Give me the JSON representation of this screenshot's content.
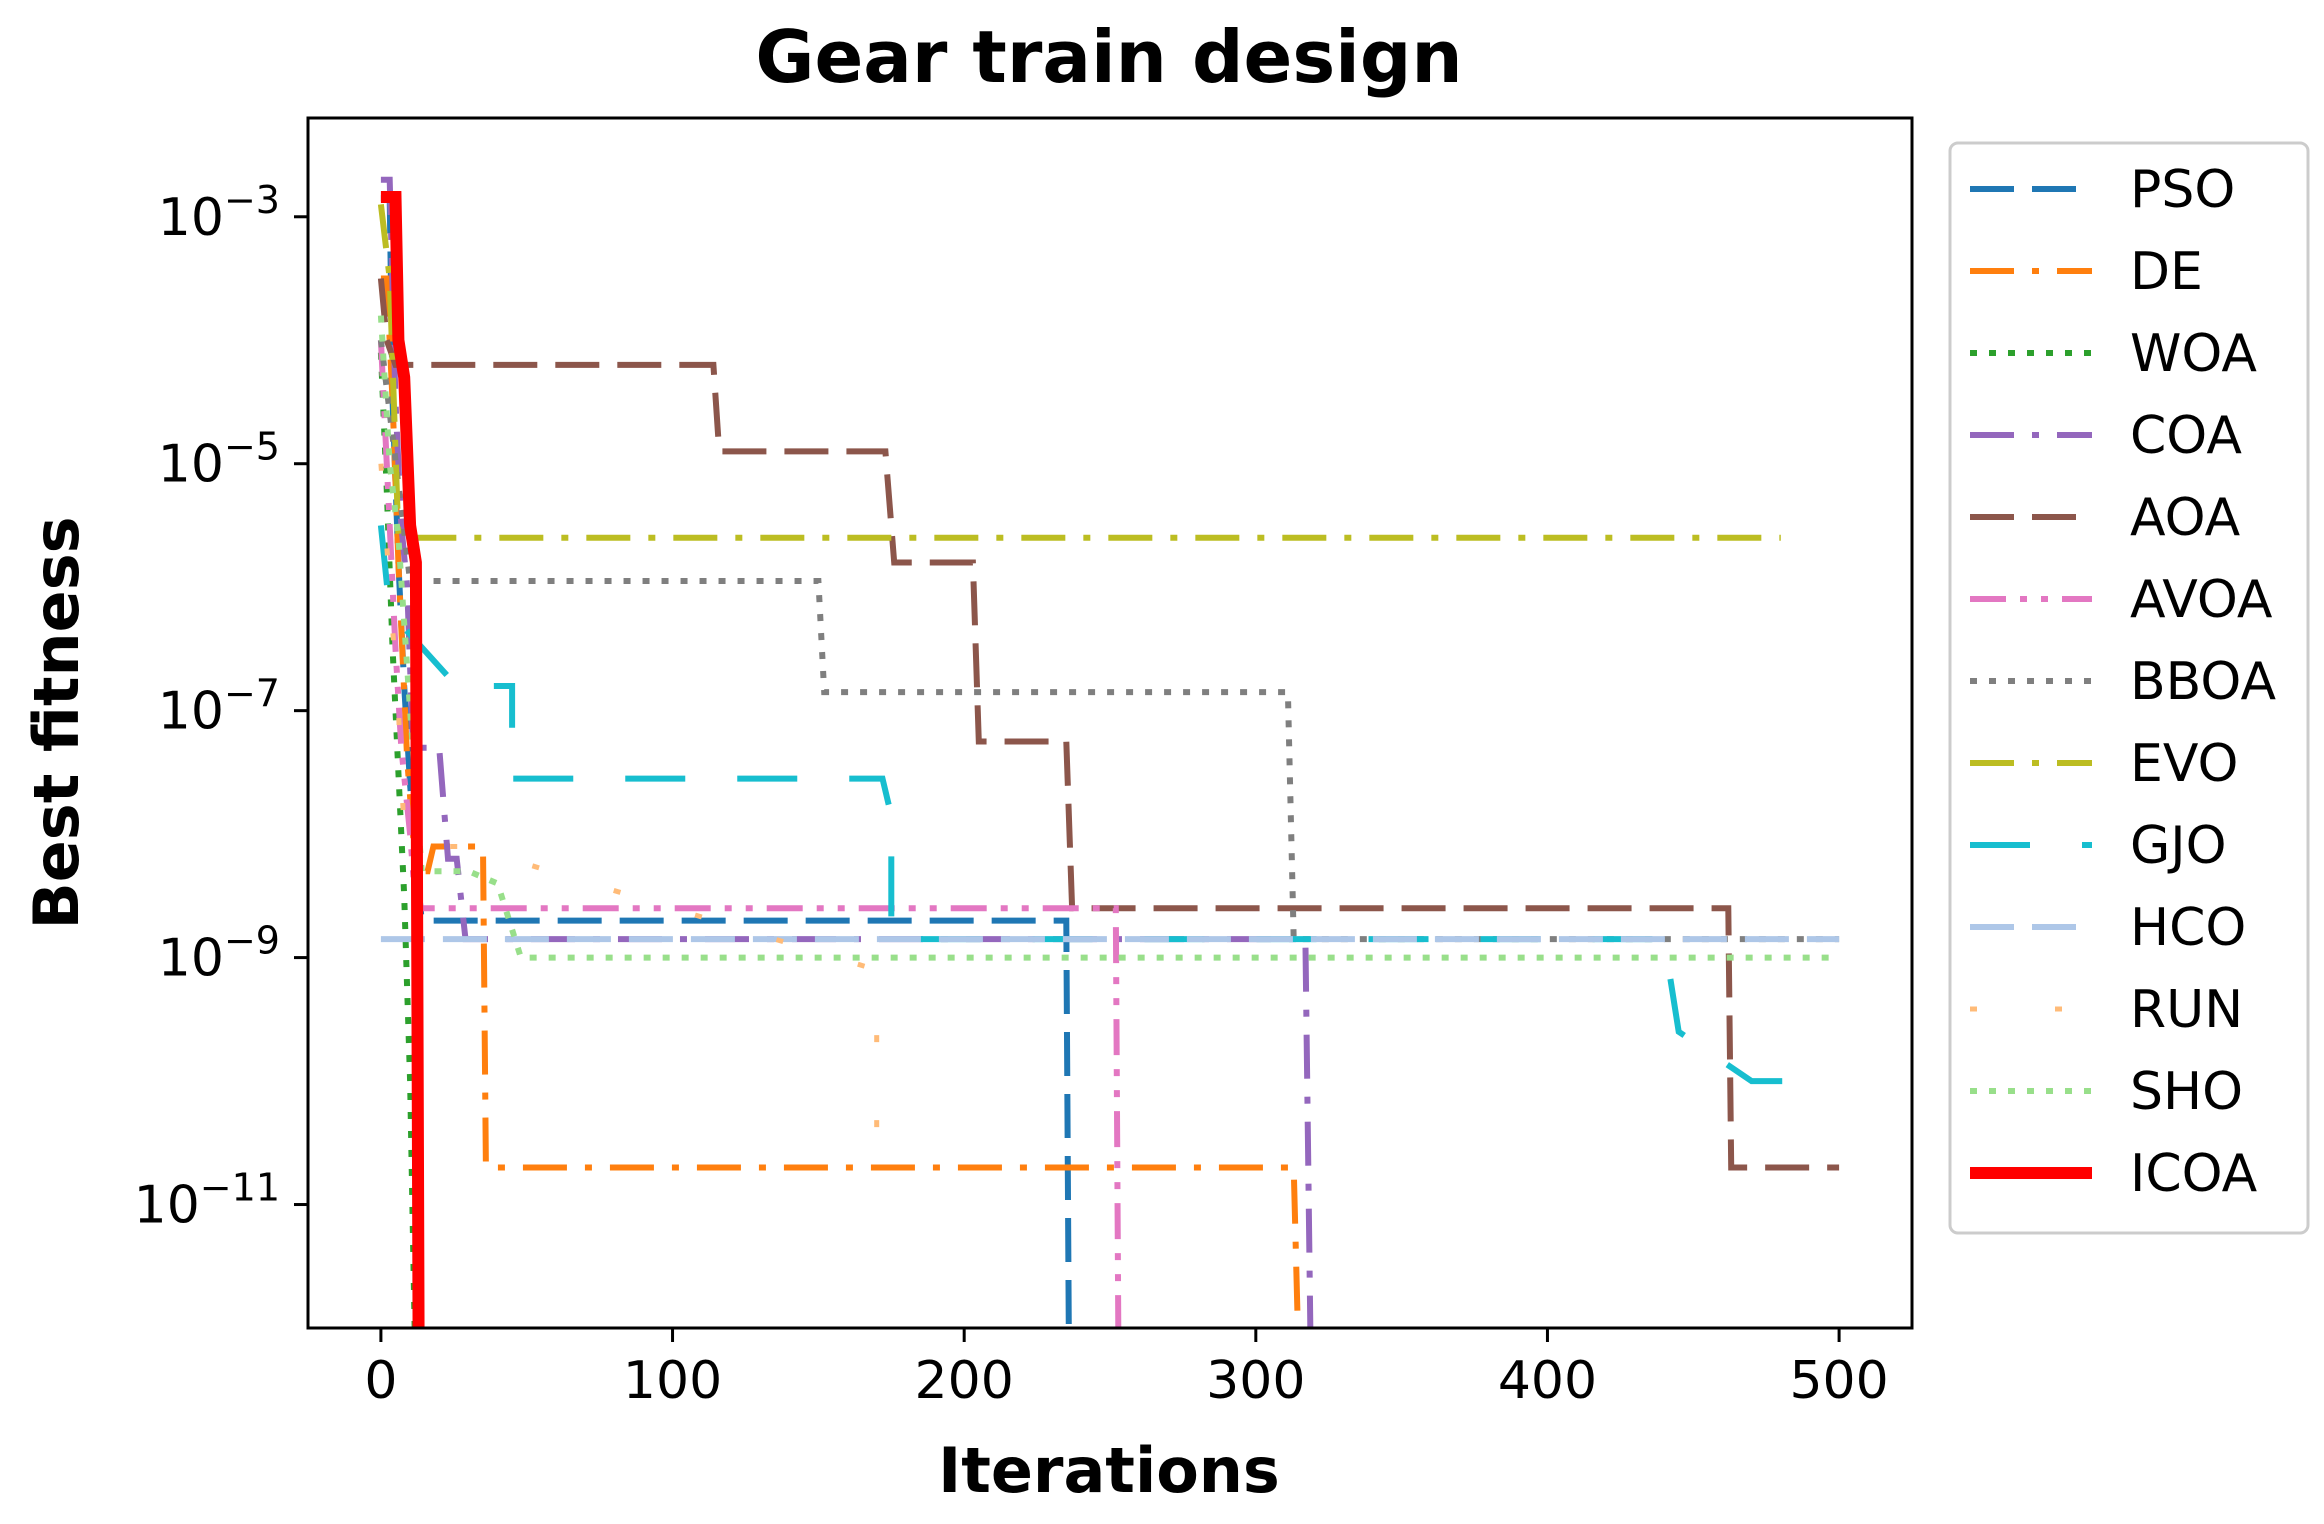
{
  "chart_data": {
    "type": "line",
    "title": "Gear train design",
    "xlabel": "Iterations",
    "ylabel": "Best fitness",
    "xlim": [
      -25,
      525
    ],
    "ylim_log10": [
      -12.0,
      -2.2
    ],
    "y_scale": "log",
    "x_ticks": [
      0,
      100,
      200,
      300,
      400,
      500
    ],
    "x_tick_labels": [
      "0",
      "100",
      "200",
      "300",
      "400",
      "500"
    ],
    "y_ticks": [
      {
        "exp": -3,
        "base": "10",
        "sup": "−3"
      },
      {
        "exp": -5,
        "base": "10",
        "sup": "−5"
      },
      {
        "exp": -7,
        "base": "10",
        "sup": "−7"
      },
      {
        "exp": -9,
        "base": "10",
        "sup": "−9"
      },
      {
        "exp": -11,
        "base": "10",
        "sup": "−11"
      }
    ],
    "grid": false,
    "legend_position": "outside-right",
    "series": [
      {
        "name": "PSO",
        "color": "#1f77b4",
        "style": "dashed",
        "width": 6,
        "points": [
          [
            0,
            -2.85
          ],
          [
            3,
            -2.85
          ],
          [
            4,
            -4.5
          ],
          [
            6,
            -5.8
          ],
          [
            8,
            -6.8
          ],
          [
            10,
            -7.6
          ],
          [
            12,
            -8.2
          ],
          [
            14,
            -8.7
          ],
          [
            20,
            -8.7
          ],
          [
            235,
            -8.7
          ],
          [
            236,
            -12.56
          ],
          [
            500,
            -12.56
          ]
        ]
      },
      {
        "name": "DE",
        "color": "#ff7f0e",
        "style": "dashdot",
        "width": 6,
        "points": [
          [
            0,
            -3.5
          ],
          [
            2,
            -3.5
          ],
          [
            4,
            -4.5
          ],
          [
            6,
            -5.8
          ],
          [
            9,
            -7.4
          ],
          [
            12,
            -8.3
          ],
          [
            16,
            -8.3
          ],
          [
            18,
            -8.1
          ],
          [
            35,
            -8.1
          ],
          [
            36,
            -10.7
          ],
          [
            313,
            -10.7
          ],
          [
            315,
            -12.56
          ],
          [
            320,
            -12.56
          ]
        ]
      },
      {
        "name": "WOA",
        "color": "#2ca02c",
        "style": "dotted",
        "width": 6,
        "points": [
          [
            0,
            -4.1
          ],
          [
            2,
            -5.2
          ],
          [
            4,
            -6.5
          ],
          [
            6,
            -7.5
          ],
          [
            8,
            -8.5
          ],
          [
            10,
            -10.0
          ],
          [
            12,
            -12.56
          ],
          [
            14,
            -12.56
          ]
        ]
      },
      {
        "name": "COA",
        "color": "#9467bd",
        "style": "dashdot",
        "width": 6,
        "points": [
          [
            0,
            -2.7
          ],
          [
            3,
            -2.7
          ],
          [
            5,
            -4.5
          ],
          [
            7,
            -5.5
          ],
          [
            9,
            -6.0
          ],
          [
            11,
            -7.3
          ],
          [
            14,
            -7.3
          ],
          [
            20,
            -7.3
          ],
          [
            23,
            -8.2
          ],
          [
            26,
            -8.2
          ],
          [
            29,
            -8.85
          ],
          [
            317,
            -8.85
          ],
          [
            319,
            -12.56
          ],
          [
            320,
            -12.56
          ]
        ]
      },
      {
        "name": "AOA",
        "color": "#8c564b",
        "style": "dashed",
        "width": 6,
        "points": [
          [
            0,
            -3.5
          ],
          [
            2,
            -4.0
          ],
          [
            5,
            -4.2
          ],
          [
            114,
            -4.2
          ],
          [
            116,
            -4.9
          ],
          [
            173,
            -4.9
          ],
          [
            176,
            -5.8
          ],
          [
            203,
            -5.8
          ],
          [
            205,
            -7.25
          ],
          [
            235,
            -7.25
          ],
          [
            237,
            -8.6
          ],
          [
            462,
            -8.6
          ],
          [
            463,
            -10.7
          ],
          [
            500,
            -10.7
          ]
        ]
      },
      {
        "name": "AVOA",
        "color": "#e377c2",
        "style": "dashdotdot",
        "width": 6,
        "points": [
          [
            0,
            -4.0
          ],
          [
            3,
            -5.5
          ],
          [
            5,
            -6.5
          ],
          [
            7,
            -7.3
          ],
          [
            10,
            -8.0
          ],
          [
            12,
            -8.6
          ],
          [
            252,
            -8.6
          ],
          [
            253,
            -12.56
          ],
          [
            255,
            -12.56
          ]
        ]
      },
      {
        "name": "BBOA",
        "color": "#7f7f7f",
        "style": "dotted",
        "width": 6,
        "points": [
          [
            0,
            -4.0
          ],
          [
            10,
            -5.95
          ],
          [
            150,
            -5.95
          ],
          [
            152,
            -6.85
          ],
          [
            311,
            -6.85
          ],
          [
            313,
            -8.85
          ],
          [
            500,
            -8.85
          ]
        ]
      },
      {
        "name": "EVO",
        "color": "#bcbd22",
        "style": "dashdot",
        "width": 6,
        "points": [
          [
            0,
            -2.9
          ],
          [
            3,
            -3.5
          ],
          [
            6,
            -5.6
          ],
          [
            30,
            -5.6
          ],
          [
            480,
            -5.6
          ]
        ]
      },
      {
        "name": "GJO",
        "color": "#17becf",
        "style": "longdash",
        "width": 6,
        "points": [
          [
            0,
            -5.5
          ],
          [
            3,
            -6.2
          ],
          [
            26,
            -6.8
          ],
          [
            45,
            -6.8
          ],
          [
            45,
            -7.55
          ],
          [
            172,
            -7.55
          ],
          [
            175,
            -7.85
          ],
          [
            175,
            -8.85
          ],
          [
            440,
            -8.85
          ],
          [
            445,
            -9.6
          ],
          [
            470,
            -10.0
          ],
          [
            485,
            -10.0
          ]
        ]
      },
      {
        "name": "HCO",
        "color": "#aec7e8",
        "style": "dashed",
        "width": 6,
        "points": [
          [
            0,
            -8.85
          ],
          [
            500,
            -8.85
          ]
        ]
      },
      {
        "name": "RUN",
        "color": "#ffbb78",
        "style": "sparse",
        "width": 5,
        "points": [
          [
            0,
            -5.0
          ],
          [
            3,
            -6.0
          ],
          [
            6,
            -7.0
          ],
          [
            8,
            -8.0
          ],
          [
            10,
            -8.1
          ],
          [
            30,
            -8.1
          ],
          [
            170,
            -9.1
          ],
          [
            170,
            -10.0
          ],
          [
            170,
            -11.0
          ]
        ]
      },
      {
        "name": "SHO",
        "color": "#98df8a",
        "style": "dotted",
        "width": 6,
        "points": [
          [
            0,
            -3.8
          ],
          [
            3,
            -5.0
          ],
          [
            6,
            -5.6
          ],
          [
            10,
            -7.0
          ],
          [
            14,
            -8.3
          ],
          [
            30,
            -8.3
          ],
          [
            40,
            -8.4
          ],
          [
            48,
            -9.0
          ],
          [
            500,
            -9.0
          ]
        ]
      },
      {
        "name": "ICOA",
        "color": "#ff0000",
        "style": "solid",
        "width": 12,
        "points": [
          [
            0,
            -2.84
          ],
          [
            4,
            -2.84
          ],
          [
            5,
            -2.84
          ],
          [
            6,
            -4.0
          ],
          [
            8,
            -4.3
          ],
          [
            10,
            -5.5
          ],
          [
            12,
            -5.8
          ],
          [
            13,
            -12.56
          ],
          [
            500,
            -12.56
          ]
        ]
      }
    ]
  }
}
